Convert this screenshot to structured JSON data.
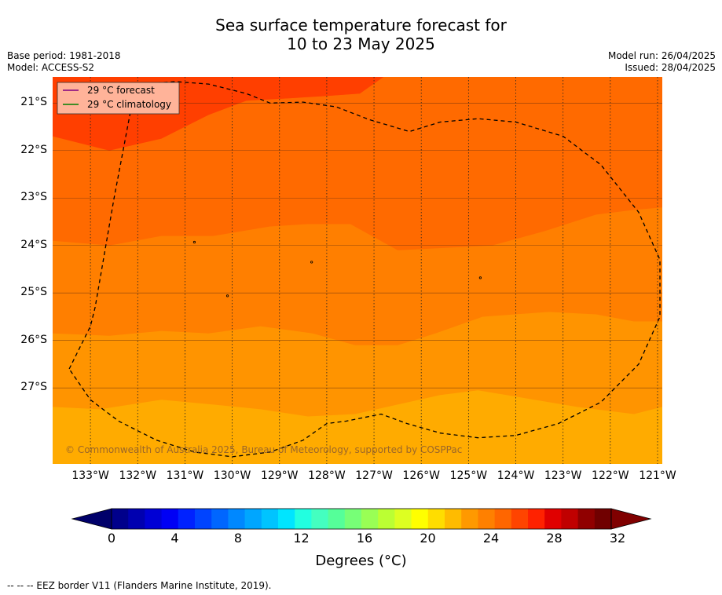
{
  "chart_data": {
    "type": "heatmap",
    "title_line1": "Sea surface temperature forecast for",
    "title_line2": "10 to 23 May 2025",
    "base_period": "Base period: 1981-2018",
    "model": "Model: ACCESS-S2",
    "model_run": "Model run: 26/04/2025",
    "issued": "Issued: 28/04/2025",
    "x_range": [
      -133.8,
      -120.9
    ],
    "y_range": [
      -28.6,
      -20.45
    ],
    "y_ticks": [
      "21°S",
      "22°S",
      "23°S",
      "24°S",
      "25°S",
      "26°S",
      "27°S"
    ],
    "x_ticks": [
      "133°W",
      "132°W",
      "131°W",
      "130°W",
      "129°W",
      "128°W",
      "127°W",
      "126°W",
      "125°W",
      "124°W",
      "123°W",
      "122°W",
      "121°W"
    ],
    "legend": [
      {
        "label": "29 °C  forecast",
        "color": "#800080"
      },
      {
        "label": "29 °C  climatology",
        "color": "#008000"
      }
    ],
    "legend_box_color": "#ffb399",
    "copyright": "© Commonwealth of Australia 2025, Bureau of Meteorology, supported by COSPPac",
    "colorbar": {
      "ticks": [
        "0",
        "4",
        "8",
        "12",
        "16",
        "20",
        "24",
        "28",
        "32"
      ],
      "label": "Degrees (°C)",
      "colors": [
        "#00008b",
        "#0000b0",
        "#0000d5",
        "#0000f5",
        "#0022ff",
        "#0044ff",
        "#0066ff",
        "#0088ff",
        "#00a6ff",
        "#00c4ff",
        "#00e5ff",
        "#22ffe0",
        "#44ffc0",
        "#55ff99",
        "#77ff77",
        "#99ff55",
        "#bbff33",
        "#ddff22",
        "#ffff00",
        "#ffdd00",
        "#ffbb00",
        "#ff9900",
        "#ff8000",
        "#ff6600",
        "#ff4400",
        "#ff2200",
        "#e00000",
        "#c00000",
        "#900000",
        "#700000"
      ],
      "under_color": "#00006a",
      "over_color": "#800000"
    },
    "bands": [
      {
        "temp_range": "29-30 °C",
        "color": "#ff3f00"
      },
      {
        "temp_range": "28-29 °C",
        "color": "#ff5500"
      },
      {
        "temp_range": "27-28 °C",
        "color": "#ff6a00"
      },
      {
        "temp_range": "26-27 °C",
        "color": "#ff7f00"
      },
      {
        "temp_range": "25-26 °C",
        "color": "#ff9400"
      },
      {
        "temp_range": "24-25 °C",
        "color": "#ffab00"
      }
    ],
    "footer": "--  --  -- EEZ border V11 (Flanders Marine Institute, 2019)."
  }
}
